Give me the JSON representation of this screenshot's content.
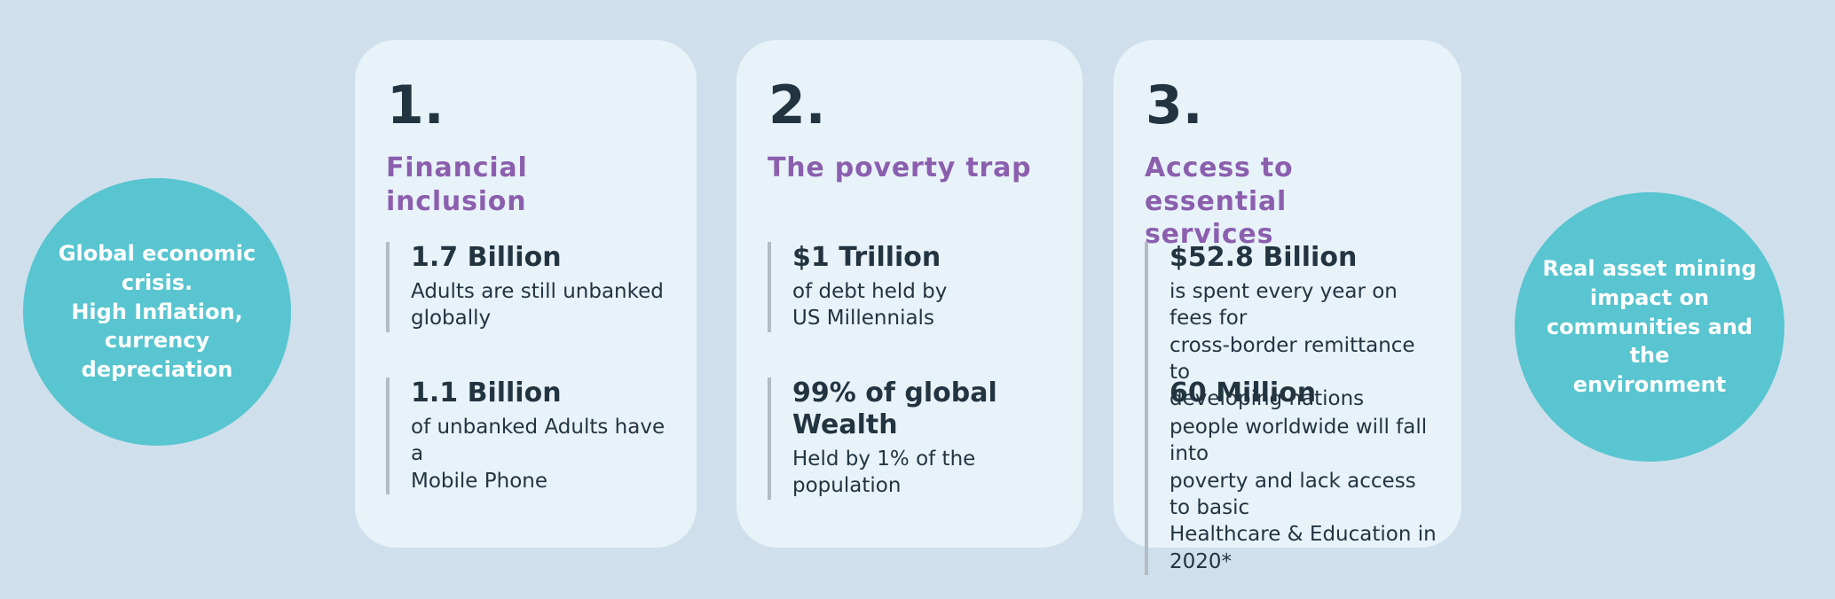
{
  "theme": {
    "background": "#cfe0ec",
    "card_bg": "#e8f3f9",
    "circle_teal": "#58c5d0",
    "title_purple": "#8b5fae",
    "text_dark": "#233441",
    "stat_bar_gray": "#b4bcc3",
    "circle_text_white": "#ffffff"
  },
  "left_circle": {
    "text": "Global economic\ncrisis.\nHigh Inflation,\ncurrency\ndepreciation"
  },
  "right_circle": {
    "text": "Real asset  mining\nimpact on\ncommunities and the\nenvironment"
  },
  "cards": [
    {
      "number": "1.",
      "title": "Financial inclusion",
      "stats": [
        {
          "value": "1.7 Billion",
          "desc": "Adults are still unbanked\nglobally"
        },
        {
          "value": "1.1 Billion",
          "desc": "of unbanked Adults have a\nMobile Phone"
        }
      ]
    },
    {
      "number": "2.",
      "title": "The poverty trap",
      "stats": [
        {
          "value": "$1 Trillion",
          "desc": "of debt held by\nUS Millennials"
        },
        {
          "value": "99% of global Wealth",
          "desc": "Held by 1% of the\npopulation"
        }
      ]
    },
    {
      "number": "3.",
      "title": "Access to essential\nservices",
      "stats": [
        {
          "value": "$52.8 Billion",
          "desc": "is spent every year on fees for\ncross-border remittance to\ndeveloping nations"
        },
        {
          "value": "60 Million",
          "desc": "people worldwide will fall into\npoverty and lack access to basic\nHealthcare & Education in 2020*"
        }
      ]
    }
  ]
}
